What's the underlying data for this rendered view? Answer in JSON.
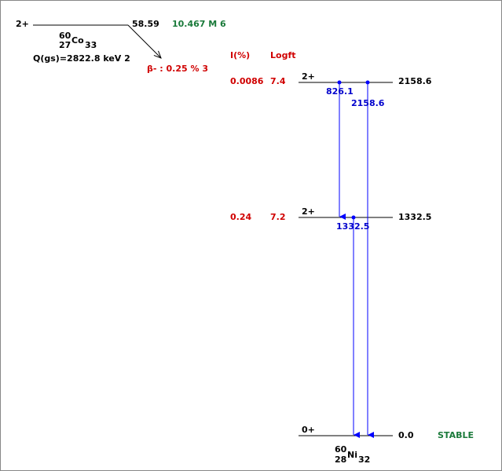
{
  "parent": {
    "spin": "2+",
    "energy": "58.59",
    "half_life": "10.467 M 6",
    "mass": "60",
    "z": "27",
    "symbol": "Co",
    "n": "33",
    "q_value": "Q(gs)=2822.8 keV 2",
    "decay": "β- : 0.25 % 3"
  },
  "columns": {
    "intensity": "I(%)",
    "logft": "Logft"
  },
  "levels": [
    {
      "spin": "2+",
      "energy": "2158.6",
      "intensity": "0.0086",
      "logft": "7.4"
    },
    {
      "spin": "2+",
      "energy": "1332.5",
      "intensity": "0.24",
      "logft": "7.2"
    },
    {
      "spin": "0+",
      "energy": "0.0",
      "half_life": "STABLE"
    }
  ],
  "transitions": [
    {
      "label": "826.1"
    },
    {
      "label": "2158.6"
    },
    {
      "label": "1332.5"
    }
  ],
  "daughter": {
    "mass": "60",
    "z": "28",
    "symbol": "Ni",
    "n": "32"
  }
}
